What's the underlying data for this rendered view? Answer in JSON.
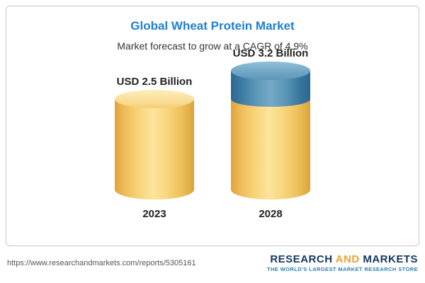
{
  "header": {
    "title": "Global Wheat Protein Market",
    "subtitle": "Market forecast to grow at a CAGR of 4.9%"
  },
  "chart_data": {
    "type": "bar",
    "subtype": "3d-cylinder-stacked",
    "title": "Global Wheat Protein Market",
    "subtitle": "Market forecast to grow at a CAGR of 4.9%",
    "unit": "USD Billion",
    "cagr_percent": 4.9,
    "categories": [
      "2023",
      "2028"
    ],
    "values": [
      2.5,
      3.2
    ],
    "value_labels": [
      "USD 2.5 Billion",
      "USD 3.2 Billion"
    ],
    "series": [
      {
        "name": "market-size-base",
        "values": [
          2.5,
          2.5
        ],
        "color": "#f6cf73"
      },
      {
        "name": "growth-to-2028",
        "values": [
          0,
          0.7
        ],
        "color": "#4d87ab"
      }
    ],
    "legend": "none",
    "axes": "none"
  },
  "footer": {
    "url": "https://www.researchandmarkets.com/reports/5305161",
    "logo": {
      "word1": "RESEARCH",
      "word2": "AND",
      "word3": "MARKETS",
      "tagline": "THE WORLD'S LARGEST MARKET RESEARCH STORE"
    },
    "colors": {
      "navy": "#12365f",
      "gold": "#eea236",
      "tagline_blue": "#2e7fb5"
    }
  }
}
